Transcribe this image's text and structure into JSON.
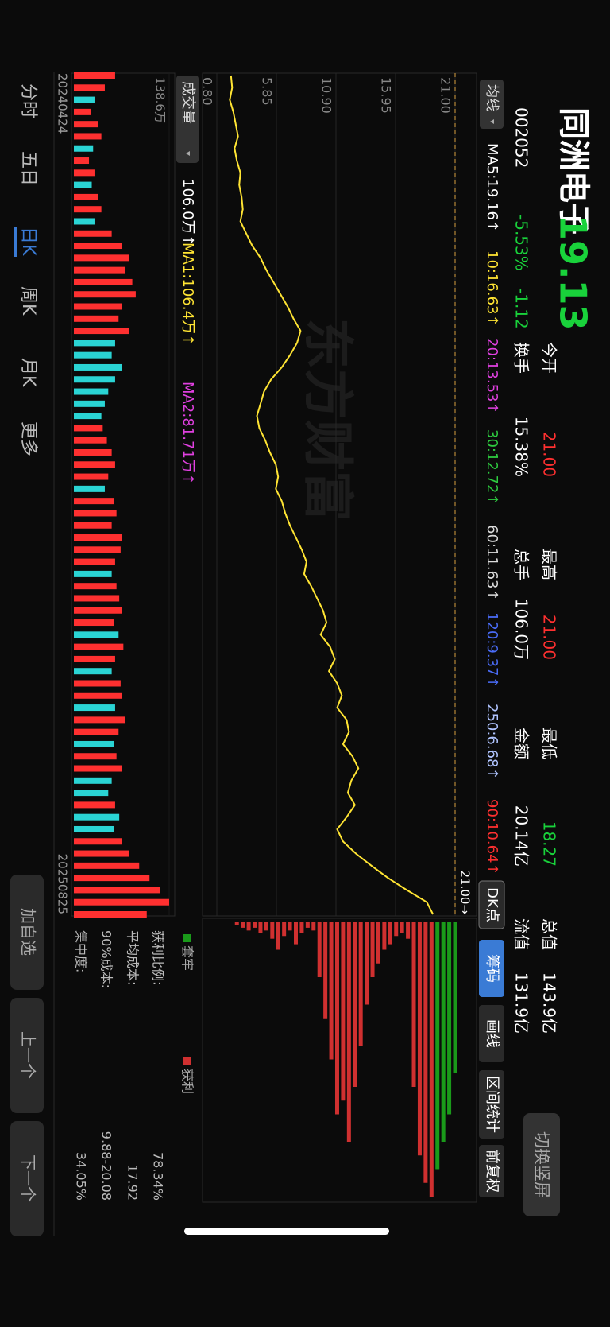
{
  "header": {
    "name": "同洲电子",
    "price": "19.13",
    "code": "002052",
    "change_pct": "-5.53%",
    "change": "-1.12",
    "switch_button": "切换竖屏"
  },
  "stats": [
    {
      "label": "今开",
      "value": "21.00",
      "color": "#ff3030"
    },
    {
      "label": "换手",
      "value": "15.38%",
      "color": "#ffffff"
    },
    {
      "label": "最高",
      "value": "21.00",
      "color": "#ff3030"
    },
    {
      "label": "总手",
      "value": "106.0万",
      "color": "#ffffff"
    },
    {
      "label": "最低",
      "value": "18.27",
      "color": "#19d23b"
    },
    {
      "label": "金额",
      "value": "20.14亿",
      "color": "#ffffff"
    },
    {
      "label": "总值",
      "value": "143.9亿",
      "color": "#ffffff"
    },
    {
      "label": "流值",
      "value": "131.9亿",
      "color": "#ffffff"
    }
  ],
  "ma_bar": {
    "button": "均线",
    "items": [
      {
        "text": "MA5:19.16↑",
        "color": "#ffffff"
      },
      {
        "text": "10:16.63↑",
        "color": "#ffe433"
      },
      {
        "text": "20:13.53↑",
        "color": "#e040e0"
      },
      {
        "text": "30:12.72↑",
        "color": "#2ecc40"
      },
      {
        "text": "60:11.63↑",
        "color": "#dddddd"
      },
      {
        "text": "120:9.37↑",
        "color": "#4a6cf7"
      },
      {
        "text": "250:6.68↑",
        "color": "#b0c4ff"
      },
      {
        "text": "90:10.64↑",
        "color": "#ff3030"
      }
    ]
  },
  "tools": {
    "items": [
      "DK点",
      "筹码",
      "画线",
      "区间统计",
      "前复权"
    ],
    "active": 1
  },
  "chart_data": {
    "type": "line",
    "watermark": "东方财富",
    "color": "#ffe433",
    "categories": [
      "20240424",
      null,
      null,
      null,
      null,
      null,
      null,
      null,
      null,
      null,
      null,
      null,
      null,
      null,
      null,
      null,
      null,
      null,
      null,
      null,
      null,
      null,
      null,
      null,
      null,
      null,
      null,
      null,
      null,
      null,
      null,
      null,
      null,
      null,
      null,
      null,
      null,
      null,
      null,
      null,
      null,
      null,
      null,
      null,
      null,
      null,
      null,
      null,
      null,
      null,
      null,
      null,
      null,
      null,
      null,
      null,
      null,
      null,
      null,
      null,
      null,
      null,
      null,
      null,
      null,
      null,
      null,
      null,
      null,
      "20250825"
    ],
    "values": [
      2.0,
      2.1,
      1.9,
      2.2,
      2.4,
      2.6,
      2.3,
      2.5,
      2.8,
      2.7,
      2.9,
      3.0,
      2.8,
      3.3,
      3.8,
      4.5,
      5.0,
      5.6,
      6.2,
      6.8,
      7.3,
      7.9,
      7.6,
      7.0,
      6.3,
      5.4,
      4.8,
      4.5,
      4.2,
      4.4,
      4.9,
      5.3,
      5.8,
      6.0,
      5.8,
      6.3,
      6.6,
      7.0,
      7.5,
      8.0,
      8.4,
      8.2,
      8.8,
      9.3,
      9.8,
      10.1,
      9.6,
      10.4,
      10.8,
      10.3,
      11.0,
      11.4,
      11.0,
      11.8,
      12.0,
      11.5,
      12.3,
      12.8,
      12.2,
      11.9,
      12.5,
      11.8,
      11.0,
      11.5,
      12.6,
      13.9,
      15.3,
      16.9,
      18.6,
      19.13
    ],
    "ylim": [
      0.8,
      21.0
    ],
    "yticks": [
      {
        "value": 21.0,
        "label": "21.00"
      },
      15.95,
      {
        "value": 10.9,
        "label": "10.90"
      },
      5.85,
      {
        "value": 0.8,
        "label": "0.80"
      }
    ],
    "max_marker": {
      "value": 21.0,
      "label": "21.00→",
      "color": "#d9a040"
    }
  },
  "volume_data": {
    "type": "bar",
    "button": "成交量",
    "legend": [
      {
        "text": "106.0万↑",
        "color": "#ffffff"
      },
      {
        "text": "MA1:106.4万↑",
        "color": "#ffe433"
      },
      {
        "text": "MA2:81.71万↑",
        "color": "#e040e0"
      }
    ],
    "up_color": "#ff3030",
    "down_color": "#2ad4d4",
    "values": [
      60,
      45,
      30,
      25,
      35,
      40,
      28,
      22,
      30,
      26,
      35,
      40,
      30,
      55,
      70,
      80,
      75,
      85,
      90,
      70,
      65,
      80,
      60,
      55,
      70,
      60,
      50,
      45,
      40,
      42,
      48,
      55,
      60,
      50,
      45,
      58,
      62,
      55,
      70,
      68,
      60,
      55,
      62,
      66,
      70,
      58,
      65,
      72,
      60,
      55,
      68,
      70,
      60,
      75,
      65,
      58,
      62,
      70,
      55,
      50,
      60,
      66,
      58,
      70,
      80,
      95,
      110,
      125,
      138.6,
      106
    ],
    "ylim": [
      0,
      138.6
    ],
    "yticks": [
      {
        "value": 138.6,
        "label": "138.6万"
      }
    ]
  },
  "chip_data": {
    "type": "bar",
    "xlim": [
      0,
      100
    ],
    "prices": [
      1.5,
      2.0,
      2.5,
      3.0,
      3.5,
      4.0,
      4.5,
      5.0,
      5.5,
      6.0,
      6.5,
      7.0,
      7.5,
      8.0,
      8.5,
      9.0,
      9.5,
      10.0,
      10.5,
      11.0,
      11.5,
      12.0,
      12.5,
      13.0,
      13.5,
      14.0,
      14.5,
      15.0,
      15.5,
      16.0,
      16.5,
      17.0,
      17.5,
      18.0,
      18.5,
      19.0,
      19.5,
      20.0,
      20.5,
      21.0
    ],
    "values": [
      0,
      0,
      1,
      2,
      3,
      2,
      4,
      3,
      6,
      10,
      5,
      3,
      8,
      4,
      2,
      3,
      20,
      35,
      50,
      70,
      65,
      80,
      60,
      45,
      30,
      20,
      15,
      10,
      8,
      5,
      4,
      6,
      60,
      85,
      95,
      100,
      90,
      80,
      70,
      55
    ],
    "legend": [
      {
        "name": "套牢",
        "color": "#1a9a1a"
      },
      {
        "name": "获利",
        "color": "#d03030"
      }
    ],
    "stats": [
      {
        "label": "获利比例:",
        "value": "78.34%"
      },
      {
        "label": "平均成本:",
        "value": "17.92"
      },
      {
        "label": "90%成本:",
        "value": "9.88-20.08"
      },
      {
        "label": "集中度:",
        "value": "34.05%"
      }
    ]
  },
  "tabs": {
    "items": [
      "分时",
      "五日",
      "日K",
      "周K",
      "月K",
      "更多"
    ],
    "active": 2
  },
  "buttons": [
    "加自选",
    "上一个",
    "下一个"
  ]
}
